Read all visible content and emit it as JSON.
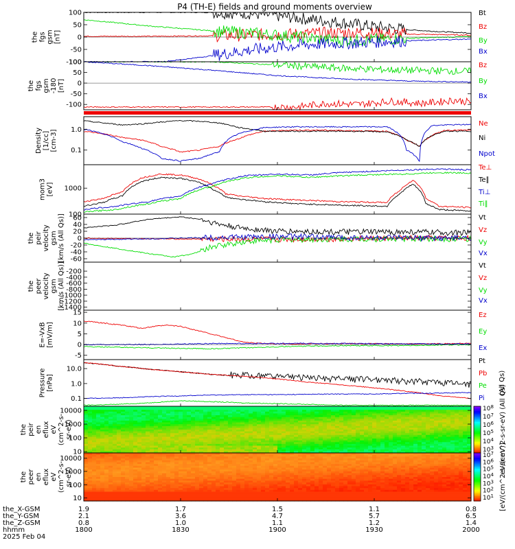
{
  "title": "P4 (TH-E) fields and ground moments overview",
  "colors": {
    "black": "#000000",
    "red": "#ee0000",
    "green": "#00dd00",
    "blue": "#0000cc",
    "spec_low": "#ff3d00",
    "spec_high": "#ffe000"
  },
  "chart_data": [
    {
      "type": "line",
      "panel": "fgs_gsm",
      "ylabel": [
        "the",
        "fgs",
        "gsm",
        "[nT]"
      ],
      "ylim": [
        -100,
        100
      ],
      "yticks": [
        "100",
        "50",
        "0",
        "-50",
        "-100"
      ],
      "series": [
        {
          "name": "Bt",
          "color": "#000000",
          "x": [
            0,
            5,
            10,
            20,
            30,
            40,
            50,
            60,
            70,
            80,
            90,
            100,
            110,
            120
          ],
          "y": [
            100,
            100,
            100,
            100,
            100,
            100,
            97,
            86,
            72,
            58,
            42,
            30,
            22,
            16
          ]
        },
        {
          "name": "Bz",
          "color": "#ee0000",
          "x": [
            0,
            20,
            40,
            60,
            80,
            100,
            120
          ],
          "y": [
            3,
            3,
            5,
            10,
            18,
            12,
            8
          ]
        },
        {
          "name": "By",
          "color": "#00dd00",
          "x": [
            0,
            10,
            20,
            30,
            40,
            50,
            60,
            70,
            80,
            100,
            120
          ],
          "y": [
            70,
            58,
            45,
            35,
            25,
            18,
            8,
            -5,
            -15,
            -5,
            2
          ]
        },
        {
          "name": "Bx",
          "color": "#0000cc",
          "x": [
            24,
            30,
            40,
            50,
            60,
            70,
            80,
            100,
            120
          ],
          "y": [
            -100,
            -92,
            -75,
            -55,
            -40,
            -30,
            -25,
            -15,
            -8
          ]
        }
      ]
    },
    {
      "type": "line",
      "panel": "fgs_gse_180",
      "ylabel": [
        "the",
        "fgs",
        "gsm",
        "-180",
        "[nT]"
      ],
      "ylim": [
        -125,
        100
      ],
      "yticks": [
        "100",
        "50",
        "0",
        "-50",
        "-100"
      ],
      "series": [
        {
          "name": "Bz",
          "color": "#ee0000",
          "x": [
            66,
            75,
            85,
            95,
            105,
            115,
            120
          ],
          "y": [
            -112,
            -95,
            -100,
            -85,
            -95,
            -80,
            -90
          ]
        },
        {
          "name": "By",
          "color": "#00dd00",
          "x": [
            0,
            20,
            40,
            60,
            80,
            100,
            120
          ],
          "y": [
            100,
            100,
            100,
            85,
            70,
            60,
            55
          ]
        },
        {
          "name": "Bx",
          "color": "#0000cc",
          "x": [
            0,
            20,
            40,
            60,
            80,
            100,
            120
          ],
          "y": [
            100,
            82,
            60,
            35,
            20,
            10,
            5
          ]
        }
      ]
    },
    {
      "type": "line",
      "panel": "density",
      "yscale": "log",
      "ylabel": [
        "Density",
        "[1/cc]",
        "[cm-3]"
      ],
      "ylim": [
        0.02,
        4
      ],
      "yticks": [
        "1.0",
        "0.1"
      ],
      "series": [
        {
          "name": "Ne",
          "color": "#ee0000",
          "x": [
            0,
            6,
            12,
            18,
            24,
            30,
            36,
            42,
            48,
            56,
            64,
            74,
            84,
            94,
            100,
            104,
            108,
            112,
            120
          ],
          "y": [
            0.8,
            0.6,
            0.4,
            0.3,
            0.15,
            0.08,
            0.1,
            0.15,
            0.35,
            0.8,
            0.9,
            0.9,
            0.85,
            0.8,
            0.3,
            0.15,
            0.5,
            0.9,
            0.9
          ]
        },
        {
          "name": "Ni",
          "color": "#000000",
          "x": [
            0,
            6,
            12,
            18,
            24,
            30,
            36,
            42,
            48,
            56,
            64,
            74,
            84,
            94,
            100,
            104,
            108,
            112,
            120
          ],
          "y": [
            2.5,
            2.0,
            1.6,
            1.8,
            2.2,
            2.6,
            2.4,
            2.0,
            1.2,
            0.8,
            0.8,
            0.8,
            0.8,
            0.75,
            0.3,
            0.15,
            0.5,
            0.8,
            0.8
          ]
        },
        {
          "name": "Npot",
          "color": "#0000cc",
          "x": [
            0,
            6,
            12,
            18,
            24,
            30,
            36,
            42,
            48,
            56,
            64,
            74,
            84,
            94,
            100,
            104,
            108,
            112,
            120
          ],
          "y": [
            1.0,
            0.6,
            0.25,
            0.12,
            0.04,
            0.03,
            0.04,
            0.08,
            0.6,
            1.2,
            1.3,
            1.3,
            1.3,
            1.3,
            0.1,
            0.03,
            1.5,
            1.6,
            1.7
          ]
        }
      ]
    },
    {
      "type": "line",
      "panel": "moments",
      "yscale": "log",
      "ylabel": [
        "mom3",
        "[eV]"
      ],
      "ylim": [
        100,
        8000
      ],
      "yticks": [
        "1000",
        "100"
      ],
      "series": [
        {
          "name": "Te⊥",
          "color": "#ee0000",
          "x": [
            0,
            6,
            12,
            18,
            24,
            30,
            36,
            40,
            44,
            48,
            56,
            66,
            80,
            94,
            98,
            102,
            106,
            110,
            120
          ],
          "y": [
            300,
            400,
            700,
            2500,
            3500,
            3200,
            2200,
            1300,
            600,
            500,
            400,
            350,
            300,
            280,
            800,
            2000,
            400,
            200,
            180
          ]
        },
        {
          "name": "Te∥",
          "color": "#000000",
          "x": [
            0,
            6,
            12,
            18,
            24,
            30,
            36,
            40,
            44,
            48,
            56,
            66,
            80,
            94,
            98,
            102,
            106,
            110,
            120
          ],
          "y": [
            200,
            280,
            500,
            1800,
            2600,
            2400,
            1600,
            900,
            450,
            380,
            300,
            250,
            220,
            200,
            600,
            1400,
            250,
            150,
            130
          ]
        },
        {
          "name": "Ti⊥",
          "color": "#0000cc",
          "x": [
            0,
            10,
            20,
            30,
            40,
            50,
            60,
            70,
            80,
            90,
            100,
            110,
            120
          ],
          "y": [
            150,
            200,
            300,
            500,
            1500,
            3000,
            3500,
            3200,
            4000,
            4500,
            5000,
            5500,
            5000
          ]
        },
        {
          "name": "Ti∥",
          "color": "#00dd00",
          "x": [
            0,
            10,
            20,
            30,
            40,
            50,
            60,
            70,
            80,
            90,
            100,
            110,
            120
          ],
          "y": [
            120,
            150,
            250,
            400,
            1200,
            2500,
            3000,
            2600,
            3000,
            3300,
            3500,
            4000,
            3800
          ]
        }
      ]
    },
    {
      "type": "line",
      "panel": "peir_velocity",
      "ylabel": [
        "the",
        "peir",
        "velocity",
        "gsm",
        "[km/s (All Qs)]"
      ],
      "ylim": [
        -70,
        70
      ],
      "yticks": [
        "60",
        "40",
        "20",
        "0",
        "-20",
        "-40",
        "-60"
      ],
      "series": [
        {
          "name": "Vt",
          "color": "#000000",
          "x": [
            0,
            10,
            20,
            30,
            36,
            42,
            48,
            60,
            80,
            100,
            120
          ],
          "y": [
            30,
            38,
            55,
            62,
            55,
            40,
            30,
            20,
            18,
            18,
            15
          ]
        },
        {
          "name": "Vz",
          "color": "#ee0000",
          "x": [
            0,
            20,
            40,
            60,
            80,
            100,
            120
          ],
          "y": [
            0,
            -2,
            -3,
            -4,
            -2,
            0,
            0
          ]
        },
        {
          "name": "Vy",
          "color": "#00dd00",
          "x": [
            0,
            10,
            20,
            28,
            34,
            40,
            50,
            60,
            80,
            100,
            120
          ],
          "y": [
            -15,
            -30,
            -45,
            -55,
            -45,
            -25,
            -10,
            -5,
            -3,
            -2,
            -2
          ]
        },
        {
          "name": "Vx",
          "color": "#0000cc",
          "x": [
            0,
            20,
            40,
            60,
            80,
            100,
            120
          ],
          "y": [
            -5,
            -2,
            2,
            5,
            2,
            0,
            0
          ]
        }
      ]
    },
    {
      "type": "line",
      "panel": "peer_velocity",
      "ylabel": [
        "the",
        "peer",
        "velocity",
        "gsm",
        "[km/s (All Qs)]"
      ],
      "ylim": [
        -1500,
        100
      ],
      "yticks": [
        "-200",
        "-400",
        "-600",
        "-800",
        "-1000",
        "-1200",
        "-1400"
      ],
      "series": [
        {
          "name": "Vt",
          "color": "#000000"
        },
        {
          "name": "Vz",
          "color": "#ee0000"
        },
        {
          "name": "Vy",
          "color": "#00dd00"
        },
        {
          "name": "Vx",
          "color": "#0000cc"
        }
      ]
    },
    {
      "type": "line",
      "panel": "e_vxb",
      "ylabel": [
        "E=-VxB",
        "[mV/m]"
      ],
      "ylim": [
        -7,
        16
      ],
      "yticks": [
        "15",
        "10",
        "5",
        "0",
        "-5"
      ],
      "series": [
        {
          "name": "Ez",
          "color": "#ee0000",
          "x": [
            0,
            6,
            12,
            18,
            22,
            26,
            30,
            34,
            38,
            42,
            46,
            50,
            56,
            66,
            80,
            100,
            120
          ],
          "y": [
            11,
            10,
            9,
            7.5,
            8.5,
            9,
            8.5,
            7,
            5.5,
            4,
            2.5,
            1,
            0.5,
            0.3,
            0.5,
            0.3,
            0.5
          ]
        },
        {
          "name": "Ey",
          "color": "#00dd00",
          "x": [
            0,
            20,
            40,
            60,
            80,
            100,
            120
          ],
          "y": [
            -1,
            -1.5,
            -2,
            -1,
            -0.5,
            -0.5,
            0
          ]
        },
        {
          "name": "Ex",
          "color": "#0000cc",
          "x": [
            0,
            20,
            40,
            60,
            80,
            100,
            120
          ],
          "y": [
            0,
            0,
            0.5,
            0.5,
            0.5,
            0.3,
            0.3
          ]
        }
      ]
    },
    {
      "type": "line",
      "panel": "pressure",
      "yscale": "log",
      "ylabel": [
        "Pressure",
        "[nPa]"
      ],
      "ylim": [
        0.03,
        40
      ],
      "yticks": [
        "10.0",
        "1.0",
        "0.1"
      ],
      "legend_unit": "(All Qs)",
      "series": [
        {
          "name": "Pt",
          "color": "#000000",
          "x": [
            0,
            10,
            20,
            30,
            40,
            50,
            60,
            70,
            80,
            90,
            100,
            110,
            120
          ],
          "y": [
            25,
            15,
            9,
            6,
            4,
            3,
            2.5,
            2,
            1.8,
            1.6,
            1.3,
            1.0,
            0.8
          ]
        },
        {
          "name": "Pb",
          "color": "#ee0000",
          "x": [
            0,
            10,
            20,
            30,
            40,
            50,
            60,
            70,
            80,
            90,
            100,
            110,
            120
          ],
          "y": [
            25,
            15,
            9,
            6,
            4,
            3,
            2,
            1.2,
            0.8,
            0.5,
            0.3,
            0.15,
            0.1
          ]
        },
        {
          "name": "Pe",
          "color": "#00dd00",
          "x": [
            0,
            10,
            20,
            30,
            40,
            50,
            60,
            70,
            80,
            90,
            100,
            110,
            120
          ],
          "y": [
            0.035,
            0.04,
            0.05,
            0.07,
            0.06,
            0.05,
            0.045,
            0.04,
            0.035,
            0.035,
            0.035,
            0.035,
            0.035
          ]
        },
        {
          "name": "Pi",
          "color": "#0000cc",
          "x": [
            0,
            10,
            20,
            30,
            40,
            50,
            60,
            70,
            80,
            90,
            100,
            110,
            120
          ],
          "y": [
            0.1,
            0.11,
            0.13,
            0.15,
            0.17,
            0.18,
            0.18,
            0.19,
            0.2,
            0.2,
            0.22,
            0.23,
            0.25
          ]
        }
      ]
    },
    {
      "type": "heatmap",
      "panel": "peir_en_eflux",
      "ylabel": [
        "the",
        "peir",
        "en",
        "eflux",
        "eV",
        "(cm^2-s-",
        "sr-eV)"
      ],
      "yscale": "log",
      "ylim": [
        8,
        20000
      ],
      "yticks": [
        "10000",
        "1000",
        "100",
        "10"
      ],
      "colorbar": {
        "label_exp": [
          "8",
          "7",
          "6",
          "5",
          "4",
          "3"
        ],
        "units": "eV/(cm^2-s-sr-eV) (All Qs)"
      }
    },
    {
      "type": "heatmap",
      "panel": "peer_en_eflux",
      "ylabel": [
        "the",
        "peer",
        "en",
        "eflux",
        "eV",
        "(cm^2-s-",
        "sr-eV)"
      ],
      "yscale": "log",
      "ylim": [
        6,
        25000
      ],
      "yticks": [
        "10000",
        "1000",
        "100",
        "10"
      ],
      "colorbar": {
        "label_exp": [
          "7",
          "6",
          "5",
          "4",
          "3",
          "2",
          "1"
        ],
        "units": "[eV/(cm^2-s-sr-eV)]"
      }
    }
  ],
  "x_axis": {
    "range_minutes": [
      0,
      120
    ],
    "tick_minutes": [
      0,
      30,
      60,
      90,
      120
    ],
    "rows": [
      {
        "label": "the_X-GSM",
        "values": [
          "1.9",
          "1.7",
          "1.5",
          "1.1",
          "0.8"
        ]
      },
      {
        "label": "the_Y-GSM",
        "values": [
          "2.1",
          "3.6",
          "4.7",
          "5.7",
          "6.5"
        ]
      },
      {
        "label": "the_Z-GSM",
        "values": [
          "0.8",
          "1.0",
          "1.1",
          "1.2",
          "1.4"
        ]
      },
      {
        "label": "hhmm",
        "values": [
          "1800",
          "1830",
          "1900",
          "1930",
          "2000"
        ]
      }
    ],
    "date": "2025 Feb 04"
  }
}
